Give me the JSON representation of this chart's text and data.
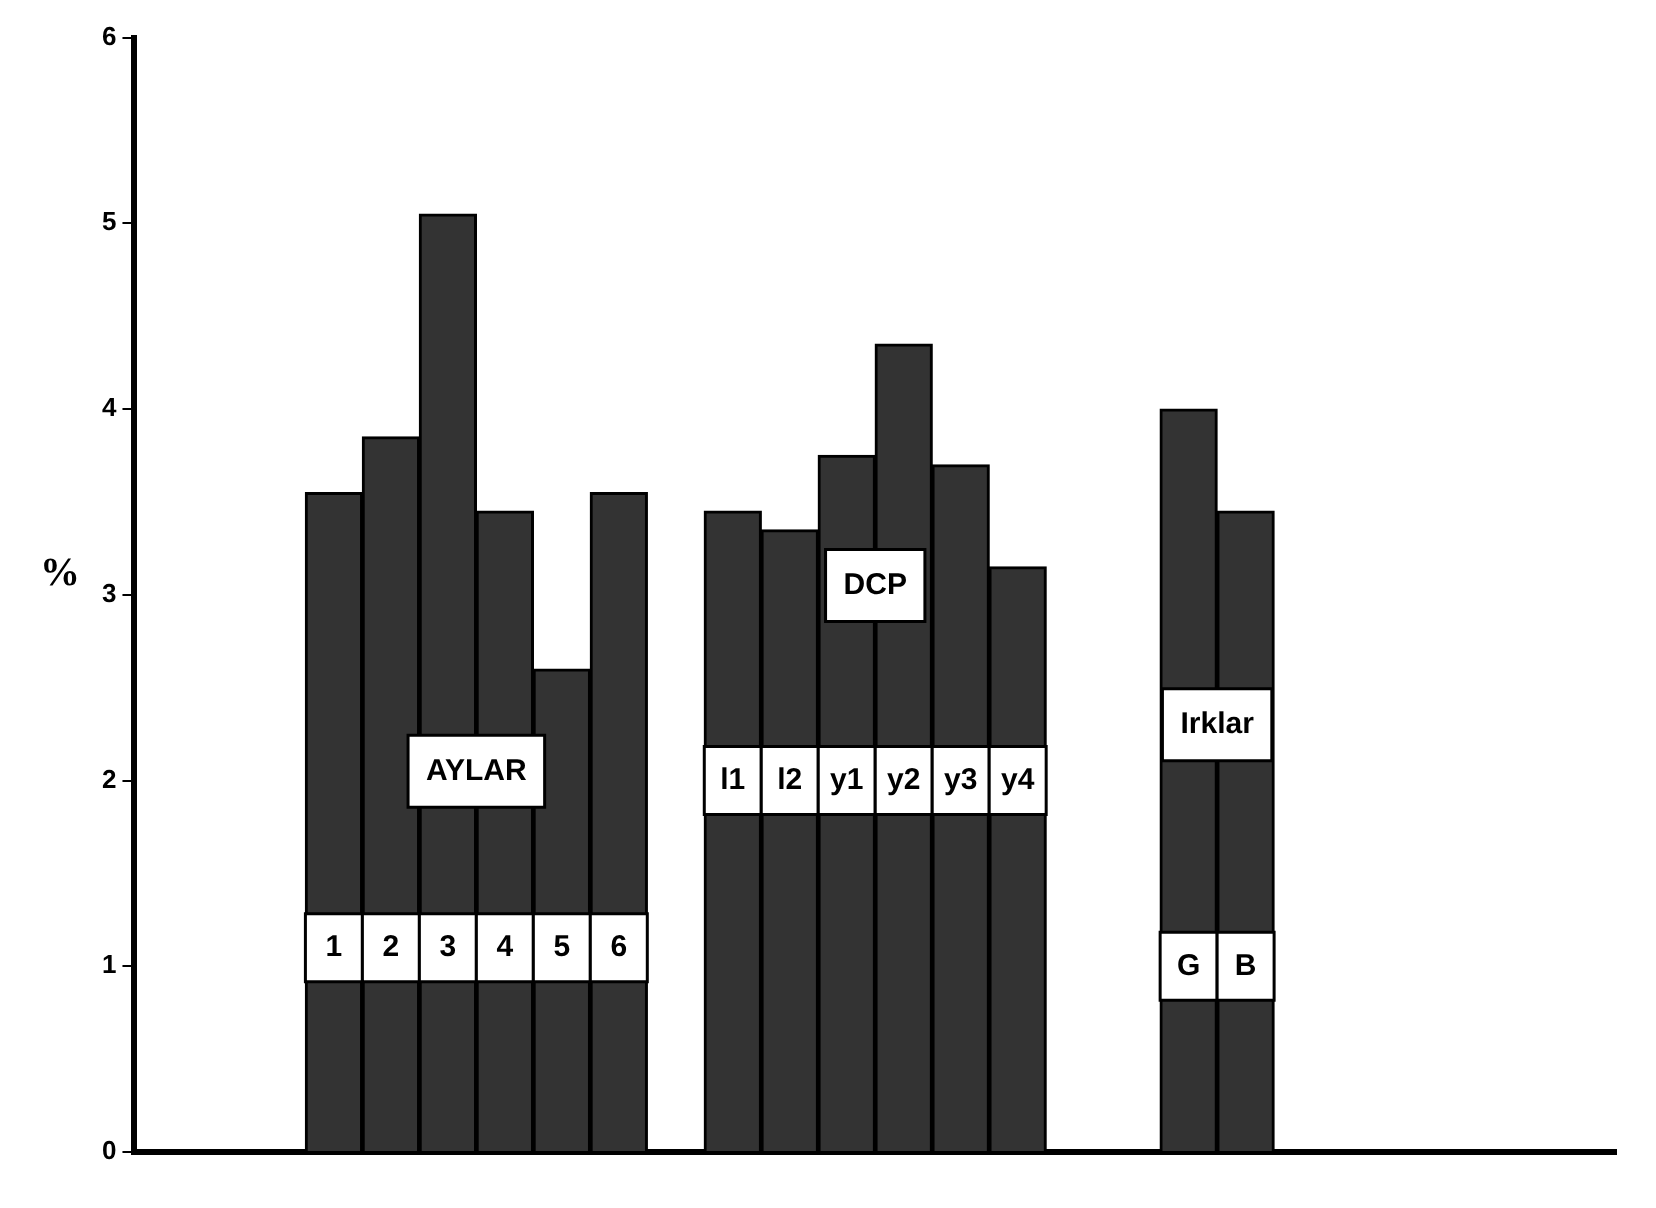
{
  "chart_data": {
    "type": "bar",
    "ylabel": "%",
    "categories": [
      null,
      null,
      null,
      "1",
      "2",
      "3",
      "4",
      "5",
      "6",
      null,
      "l1",
      "l2",
      "y1",
      "y2",
      "y3",
      "y4",
      null,
      null,
      "G",
      "B",
      null,
      null,
      null,
      null,
      null,
      null
    ],
    "values": [
      null,
      null,
      null,
      3.55,
      3.85,
      5.05,
      3.45,
      2.6,
      3.55,
      null,
      3.45,
      3.35,
      3.75,
      4.35,
      3.7,
      3.15,
      null,
      null,
      4.0,
      3.45,
      null,
      null,
      null,
      null,
      null,
      null
    ],
    "color": "#333333",
    "annotations": [
      "AYLAR",
      "DCP",
      "Irklar"
    ],
    "ylim": [
      0,
      6
    ],
    "yticks": [
      0,
      1,
      2,
      3,
      4,
      5,
      6
    ],
    "grid": false,
    "legend": false
  }
}
